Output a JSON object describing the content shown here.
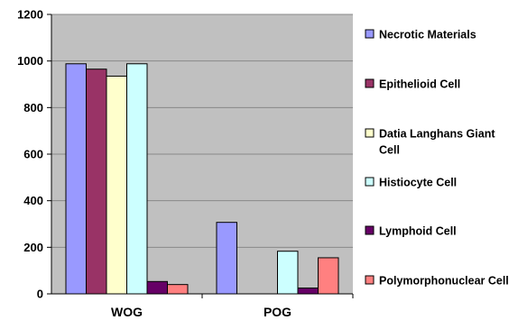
{
  "chart_data": {
    "type": "bar",
    "categories": [
      "WOG",
      "POG"
    ],
    "ylim": [
      0,
      1200
    ],
    "yticks": [
      "0",
      "200",
      "400",
      "600",
      "800",
      "1000",
      "1200"
    ],
    "grid": true,
    "legend_position": "right",
    "series": [
      {
        "name": "Necrotic Materials",
        "label_lines": [
          "Necrotic Materials"
        ],
        "color": "#9999ff",
        "values": [
          988,
          307
        ]
      },
      {
        "name": "Epithelioid Cell",
        "label_lines": [
          "Epithelioid Cell"
        ],
        "color": "#993366",
        "values": [
          965,
          0
        ]
      },
      {
        "name": "Datia Langhans Giant Cell",
        "label_lines": [
          "Datia Langhans Giant",
          "Cell"
        ],
        "color": "#ffffcc",
        "values": [
          935,
          0
        ]
      },
      {
        "name": "Histiocyte Cell",
        "label_lines": [
          "Histiocyte Cell"
        ],
        "color": "#ccffff",
        "values": [
          988,
          183
        ]
      },
      {
        "name": "Lymphoid Cell",
        "label_lines": [
          "Lymphoid Cell"
        ],
        "color": "#660066",
        "values": [
          53,
          25
        ]
      },
      {
        "name": "Polymorphonuclear Cell",
        "label_lines": [
          "Polymorphonuclear Cell"
        ],
        "color": "#ff8080",
        "values": [
          40,
          155
        ]
      }
    ]
  },
  "colors": {
    "plot_background": "#c0c0c0",
    "gridline": "#888888"
  }
}
